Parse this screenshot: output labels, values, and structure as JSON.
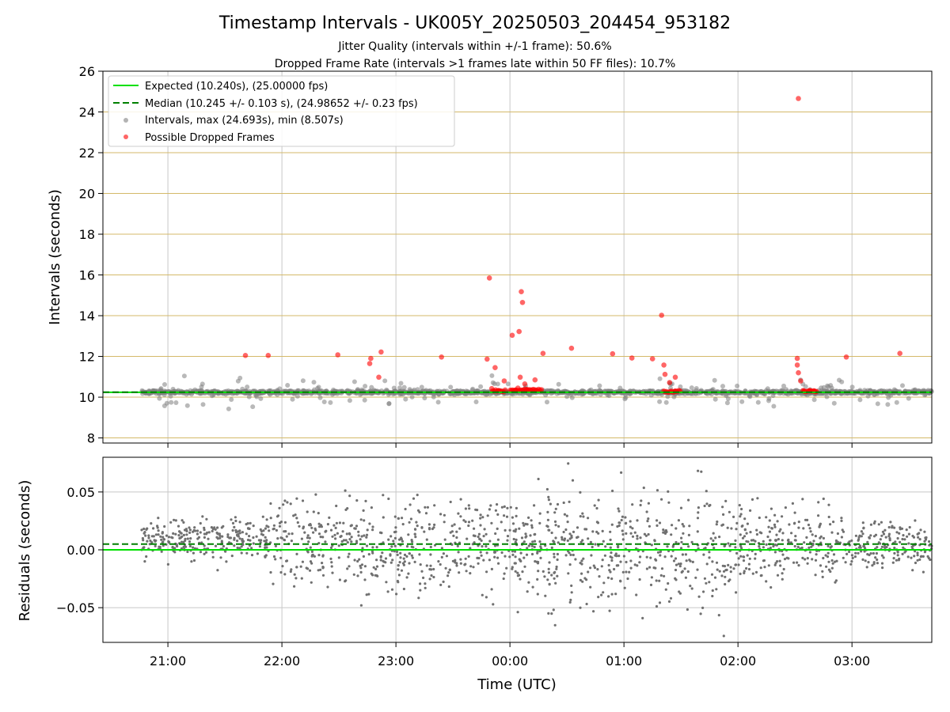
{
  "chart_data": {
    "type": "scatter",
    "title": "Timestamp Intervals - UK005Y_20250503_204454_953182",
    "subtitle_jitter": "Jitter Quality (intervals within +/-1 frame): 50.6%",
    "subtitle_dropped": "Dropped Frame Rate (intervals >1 frames late within 50 FF files): 10.7%",
    "xlabel": "Time (UTC)",
    "x_tick_labels": [
      "21:00",
      "22:00",
      "23:00",
      "00:00",
      "01:00",
      "02:00",
      "03:00"
    ],
    "x_tick_hours": [
      21,
      22,
      23,
      24,
      25,
      26,
      27
    ],
    "xlim_hours": [
      20.43,
      27.7
    ],
    "grid": "on",
    "legend_position": "upper left",
    "colors": {
      "expected": "#00e000",
      "median": "#008000",
      "intervals": "#808080",
      "dropped": "#ff0000",
      "hline_grid": "#d4b969",
      "vgrid": "#c8c8c8"
    },
    "top_panel": {
      "ylabel": "Intervals (seconds)",
      "ylim": [
        7.75,
        26
      ],
      "y_ticks": [
        8,
        10,
        12,
        14,
        16,
        18,
        20,
        22,
        24,
        26
      ],
      "expected_interval": 10.24,
      "median_interval": 10.245,
      "legend": [
        "Expected (10.240s), (25.00000 fps)",
        "Median (10.245 +/- 0.103 s), (24.98652 +/- 0.23 fps)",
        "Intervals, max (24.693s), min (8.507s)",
        "Possible Dropped Frames"
      ],
      "intervals_max": 24.693,
      "intervals_min": 8.507,
      "intervals_spread": 0.103,
      "intervals_time_range": [
        20.77,
        27.7
      ],
      "dropped_frames": [
        [
          21.68,
          12.05
        ],
        [
          21.88,
          12.05
        ],
        [
          22.49,
          12.08
        ],
        [
          22.77,
          11.65
        ],
        [
          22.78,
          11.9
        ],
        [
          22.85,
          10.98
        ],
        [
          22.87,
          12.22
        ],
        [
          23.4,
          11.97
        ],
        [
          23.8,
          11.87
        ],
        [
          23.82,
          15.85
        ],
        [
          23.84,
          10.42
        ],
        [
          23.87,
          11.45
        ],
        [
          23.9,
          10.33
        ],
        [
          23.95,
          10.8
        ],
        [
          24.02,
          13.04
        ],
        [
          24.05,
          10.35
        ],
        [
          24.07,
          10.45
        ],
        [
          24.08,
          13.22
        ],
        [
          24.1,
          15.18
        ],
        [
          24.11,
          14.65
        ],
        [
          24.09,
          10.98
        ],
        [
          24.13,
          10.65
        ],
        [
          24.15,
          10.38
        ],
        [
          24.22,
          10.85
        ],
        [
          24.29,
          12.15
        ],
        [
          24.54,
          12.4
        ],
        [
          24.9,
          12.13
        ],
        [
          25.07,
          11.92
        ],
        [
          25.25,
          11.88
        ],
        [
          25.33,
          14.02
        ],
        [
          25.35,
          11.58
        ],
        [
          25.36,
          11.12
        ],
        [
          25.4,
          10.72
        ],
        [
          25.45,
          10.98
        ],
        [
          25.35,
          10.3
        ],
        [
          25.45,
          10.3
        ],
        [
          26.52,
          11.9
        ],
        [
          26.52,
          11.58
        ],
        [
          26.53,
          11.2
        ],
        [
          26.55,
          10.8
        ],
        [
          26.53,
          24.66
        ],
        [
          26.58,
          10.3
        ],
        [
          26.63,
          10.3
        ],
        [
          26.67,
          10.3
        ],
        [
          26.95,
          11.97
        ],
        [
          27.42,
          12.15
        ]
      ],
      "dropped_clusters": [
        {
          "from": 23.85,
          "to": 23.97,
          "interval": 10.3
        },
        {
          "from": 24.0,
          "to": 24.28,
          "interval": 10.35
        },
        {
          "from": 25.36,
          "to": 25.5,
          "interval": 10.28
        },
        {
          "from": 26.57,
          "to": 26.7,
          "interval": 10.3
        }
      ]
    },
    "bottom_panel": {
      "ylabel": "Residuals (seconds)",
      "ylim": [
        -0.08,
        0.08
      ],
      "y_tick_values": [
        -0.05,
        0,
        0.05
      ],
      "y_tick_labels": [
        "−0.05",
        "0.00",
        "0.05"
      ],
      "expected_residual": 0,
      "median_residual": 0.005,
      "segments": [
        {
          "from": 20.77,
          "to": 21.9,
          "center": 0.01,
          "spread": 0.025
        },
        {
          "from": 21.9,
          "to": 24.3,
          "center": 0.005,
          "spread": 0.055
        },
        {
          "from": 24.3,
          "to": 26.0,
          "center": 0.0,
          "spread": 0.075
        },
        {
          "from": 26.0,
          "to": 27.0,
          "center": 0.005,
          "spread": 0.045
        },
        {
          "from": 27.0,
          "to": 27.7,
          "center": 0.005,
          "spread": 0.028
        }
      ]
    }
  }
}
